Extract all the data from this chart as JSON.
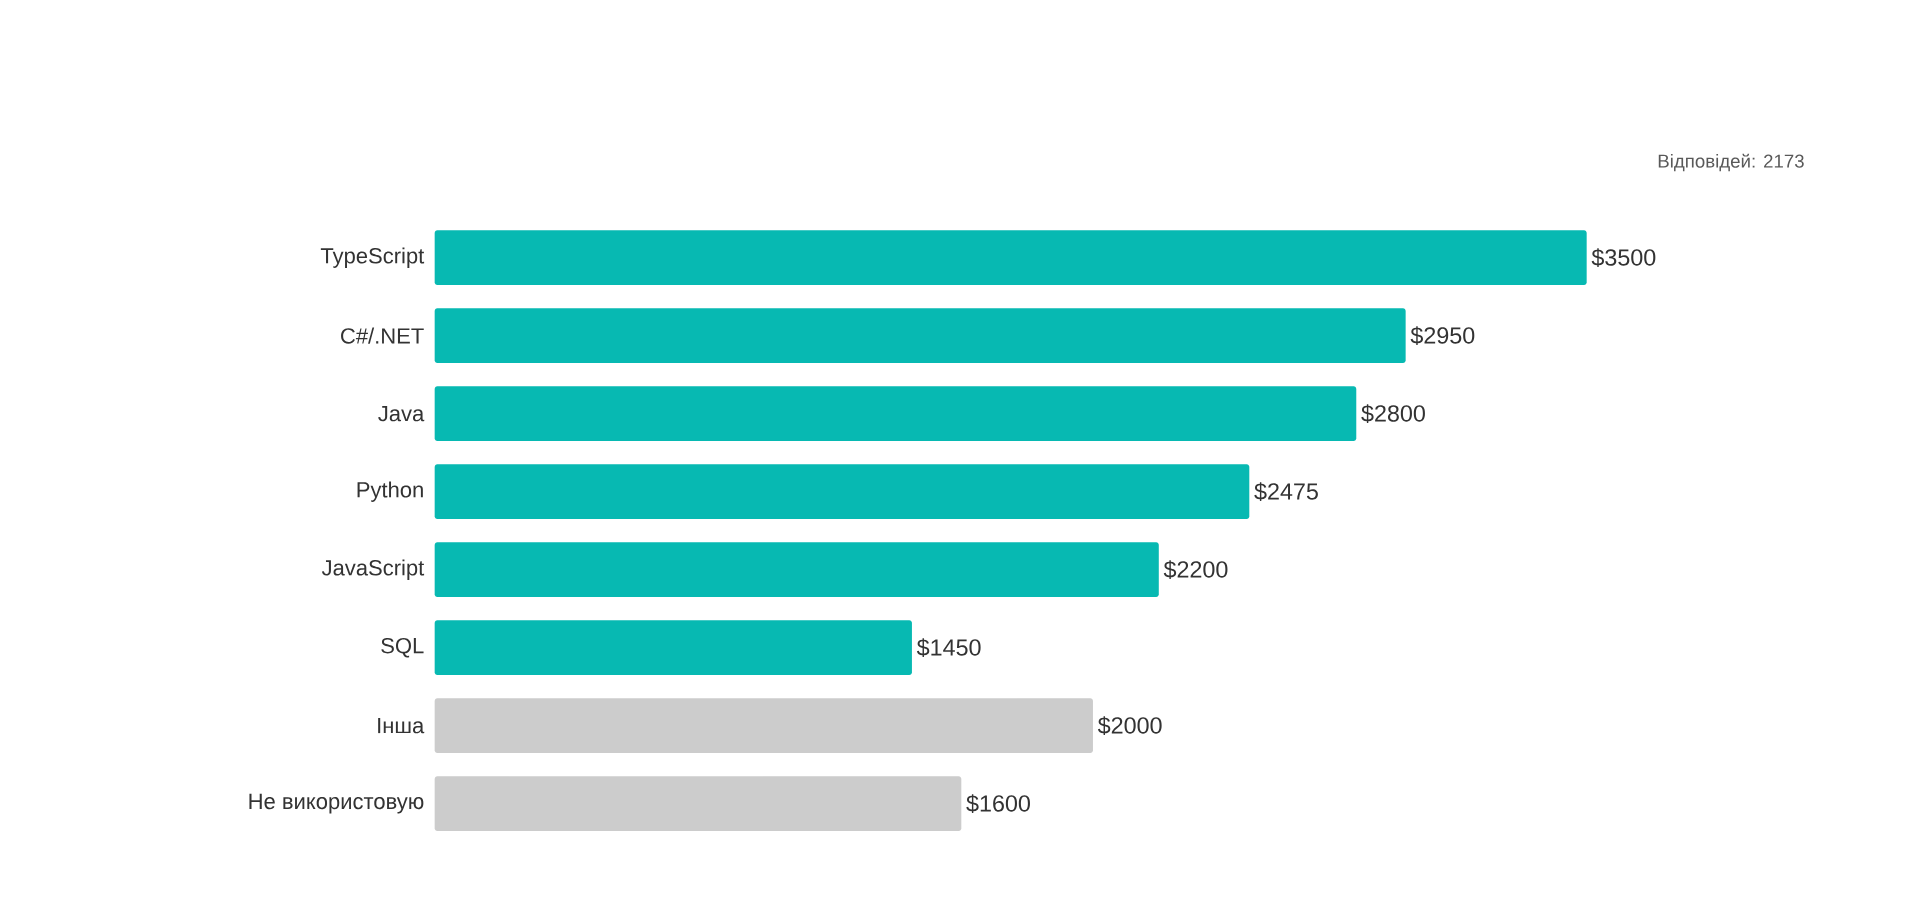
{
  "chart_data": {
    "type": "bar",
    "orientation": "horizontal",
    "tick_labels": "y",
    "categories": [
      "TypeScript",
      "C#/.NET",
      "Java",
      "Python",
      "JavaScript",
      "SQL",
      "Інша",
      "Не використовую"
    ],
    "values": [
      3500,
      2950,
      2800,
      2475,
      2200,
      1450,
      2000,
      1600
    ],
    "colors": [
      "#07b9b2",
      "#07b9b2",
      "#07b9b2",
      "#07b9b2",
      "#07b9b2",
      "#07b9b2",
      "#cccccc",
      "#cccccc"
    ],
    "value_labels": [
      "$3500",
      "$2950",
      "$2800",
      "$2475",
      "$2200",
      "$1450",
      "$2000",
      "$1600"
    ],
    "annotations": [
      "Відповідей: 2173"
    ]
  }
}
